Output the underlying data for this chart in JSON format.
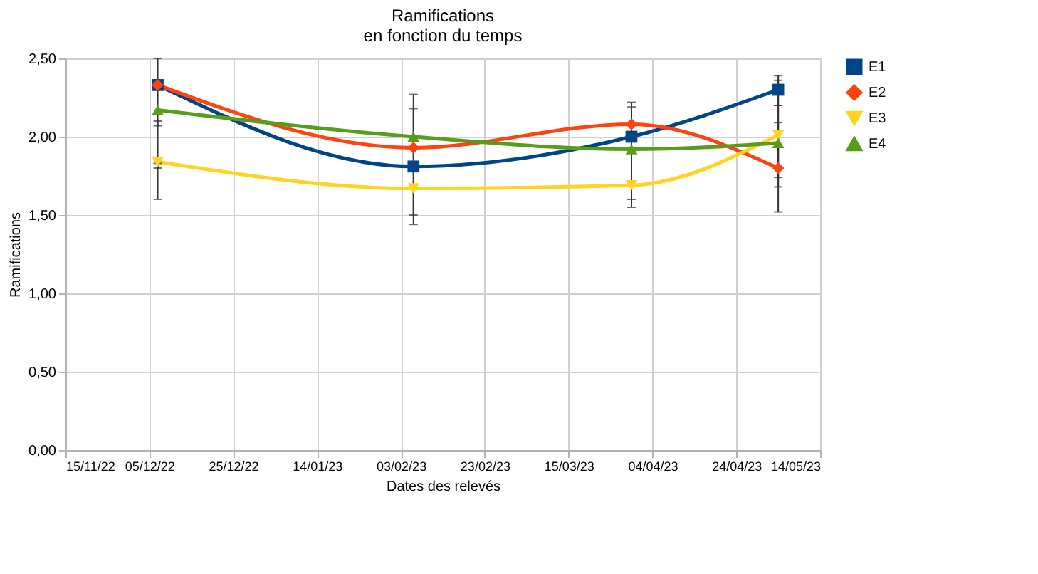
{
  "chart_data": {
    "type": "line",
    "title": "Ramifications\nen fonction du temps",
    "xlabel": "Dates des relevés",
    "ylabel": "Ramifications",
    "x": [
      "2022-12-07",
      "2023-02-06",
      "2023-03-30",
      "2023-05-04"
    ],
    "series": [
      {
        "name": "E1",
        "color": "#004586",
        "marker": "square",
        "values": [
          2.33,
          1.81,
          2.0,
          2.3
        ],
        "errors": [
          [
            1.6,
            2.5
          ],
          [
            1.44,
            2.18
          ],
          [
            1.6,
            2.19
          ],
          [
            2.2,
            2.39
          ]
        ]
      },
      {
        "name": "E2",
        "color": "#ff420e",
        "marker": "diamond",
        "values": [
          2.33,
          1.93,
          2.08,
          1.8
        ],
        "errors": [
          null,
          [
            1.5,
            2.27
          ],
          [
            1.55,
            2.22
          ],
          [
            1.52,
            2.09
          ]
        ]
      },
      {
        "name": "E3",
        "color": "#ffd320",
        "marker": "triangle-down",
        "values": [
          1.84,
          1.67,
          1.69,
          2.01
        ],
        "errors": [
          [
            1.8,
            1.83
          ],
          null,
          null,
          [
            1.68,
            2.2
          ]
        ]
      },
      {
        "name": "E4",
        "color": "#579d1c",
        "marker": "triangle-up",
        "values": [
          2.17,
          2.0,
          1.92,
          1.96
        ],
        "errors": [
          [
            2.07,
            2.1
          ],
          null,
          null,
          [
            1.74,
            2.36
          ]
        ]
      }
    ],
    "xlim": [
      "2022-11-15",
      "2023-05-14"
    ],
    "xticks": [
      {
        "value": "2022-11-15",
        "label": "15/11/22"
      },
      {
        "value": "2022-12-05",
        "label": "05/12/22"
      },
      {
        "value": "2022-12-25",
        "label": "25/12/22"
      },
      {
        "value": "2023-01-14",
        "label": "14/01/23"
      },
      {
        "value": "2023-02-03",
        "label": "03/02/23"
      },
      {
        "value": "2023-02-23",
        "label": "23/02/23"
      },
      {
        "value": "2023-03-15",
        "label": "15/03/23"
      },
      {
        "value": "2023-04-04",
        "label": "04/04/23"
      },
      {
        "value": "2023-04-24",
        "label": "24/04/23"
      },
      {
        "value": "2023-05-14",
        "label": "14/05/23"
      }
    ],
    "ylim": [
      0,
      2.5
    ],
    "yticks": [
      {
        "value": 0,
        "label": "0,00"
      },
      {
        "value": 0.5,
        "label": "0,50"
      },
      {
        "value": 1,
        "label": "1,00"
      },
      {
        "value": 1.5,
        "label": "1,50"
      },
      {
        "value": 2,
        "label": "2,00"
      },
      {
        "value": 2.5,
        "label": "2,50"
      }
    ],
    "grid": true,
    "legend": "right",
    "line_style": "solid"
  }
}
